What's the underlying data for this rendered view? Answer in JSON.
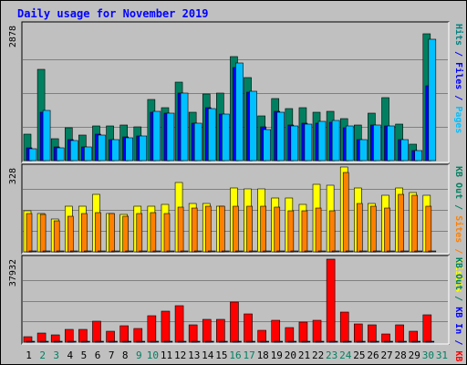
{
  "chart_data": {
    "type": "bar",
    "title": "Daily usage for November 2019",
    "categories": [
      "1",
      "2",
      "3",
      "4",
      "5",
      "6",
      "7",
      "8",
      "9",
      "10",
      "11",
      "12",
      "13",
      "14",
      "15",
      "16",
      "17",
      "18",
      "19",
      "20",
      "21",
      "22",
      "23",
      "24",
      "25",
      "26",
      "27",
      "28",
      "29",
      "30",
      "31"
    ],
    "weekend_days": [
      "2",
      "3",
      "9",
      "10",
      "16",
      "17",
      "23",
      "24",
      "30",
      "31"
    ],
    "panels": [
      {
        "id": "hits",
        "scale_max_label": "2878",
        "ymax": 2878,
        "labels": [
          {
            "text": "Pages",
            "color": "#00c0ff"
          },
          {
            "text": " / ",
            "color": "#0000ff"
          },
          {
            "text": "Files",
            "color": "#0000ff"
          },
          {
            "text": " / ",
            "color": "#0000ff"
          },
          {
            "text": "Hits",
            "color": "#008080"
          }
        ],
        "series": [
          {
            "name": "Hits",
            "color": "#008060",
            "values": [
              560,
              1950,
              470,
              700,
              550,
              740,
              740,
              760,
              720,
              1310,
              1120,
              1670,
              1030,
              1420,
              1430,
              2210,
              1770,
              950,
              1330,
              1110,
              1120,
              1030,
              1050,
              900,
              760,
              1020,
              1340,
              770,
              350,
              2700,
              null
            ]
          },
          {
            "name": "Files",
            "color": "#0000ff",
            "values": [
              280,
              1030,
              290,
              440,
              300,
              570,
              450,
              500,
              520,
              1030,
              1020,
              1430,
              800,
              1120,
              1000,
              1990,
              1460,
              720,
              1050,
              750,
              790,
              790,
              820,
              700,
              450,
              750,
              730,
              450,
              210,
              1600,
              null
            ]
          },
          {
            "name": "Pages",
            "color": "#00c0ff",
            "values": [
              260,
              1060,
              280,
              420,
              300,
              540,
              440,
              490,
              530,
              1050,
              1010,
              1430,
              800,
              1110,
              990,
              2090,
              1480,
              670,
              1040,
              740,
              780,
              830,
              850,
              730,
              440,
              750,
              730,
              450,
              210,
              2580,
              null
            ]
          }
        ]
      },
      {
        "id": "visits",
        "scale_max_label": "328",
        "ymax": 328,
        "labels": [
          {
            "text": "Visits",
            "color": "#ffff00"
          },
          {
            "text": " / ",
            "color": "#ff8000"
          },
          {
            "text": "Sites",
            "color": "#ff8000"
          },
          {
            "text": " / ",
            "color": "#008060"
          },
          {
            "text": "KB Out",
            "color": "#008060"
          }
        ],
        "series": [
          {
            "name": "Visits",
            "color": "#ffff00",
            "values": [
              160,
              150,
              130,
              180,
              180,
              225,
              150,
              145,
              180,
              180,
              185,
              270,
              190,
              190,
              180,
              250,
              245,
              245,
              210,
              210,
              185,
              265,
              260,
              330,
              250,
              190,
              220,
              250,
              230,
              220,
              null
            ]
          },
          {
            "name": "Sites",
            "color": "#ff8000",
            "values": [
              150,
              145,
              120,
              140,
              150,
              155,
              150,
              140,
              150,
              155,
              150,
              175,
              170,
              180,
              180,
              180,
              180,
              180,
              175,
              160,
              160,
              170,
              160,
              310,
              190,
              180,
              170,
              225,
              220,
              180,
              null
            ]
          },
          {
            "name": "KB Out",
            "color": "#008060",
            "values": [
              5,
              5,
              5,
              5,
              5,
              5,
              5,
              5,
              5,
              5,
              5,
              5,
              5,
              5,
              5,
              5,
              5,
              5,
              5,
              5,
              5,
              5,
              5,
              5,
              5,
              5,
              5,
              5,
              5,
              5,
              null
            ]
          }
        ]
      },
      {
        "id": "kbin",
        "scale_max_label": "37932",
        "ymax": 37932,
        "labels": [
          {
            "text": "KB F",
            "color": "#ff0000"
          },
          {
            "text": " / ",
            "color": "#0000ff"
          },
          {
            "text": "KB In",
            "color": "#0000ff"
          },
          {
            "text": " / ",
            "color": "#008060"
          },
          {
            "text": "KB Out",
            "color": "#008060"
          }
        ],
        "series": [
          {
            "name": "KB F",
            "color": "#ff0000",
            "values": [
              2400,
              4000,
              3400,
              5800,
              6000,
              9500,
              5100,
              7600,
              6200,
              12000,
              14200,
              16700,
              7900,
              10600,
              10600,
              18500,
              12800,
              5400,
              9800,
              6700,
              9100,
              10100,
              37900,
              13700,
              8400,
              7900,
              3700,
              7800,
              4900,
              12600,
              null
            ]
          },
          {
            "name": "KB In",
            "color": "#0000ff",
            "values": [
              250,
              250,
              250,
              250,
              250,
              250,
              250,
              250,
              250,
              250,
              250,
              250,
              250,
              250,
              250,
              250,
              250,
              250,
              250,
              250,
              250,
              250,
              250,
              250,
              250,
              250,
              250,
              250,
              250,
              250,
              null
            ]
          }
        ]
      }
    ],
    "colors": {
      "page_bg": "#ffffff",
      "frame_bg": "#c0c0c0",
      "plot_bg": "#c0c0c0",
      "grid": "#808080",
      "title_color": "#0000ff",
      "axis_text": "#000000",
      "weekend_text": "#008060"
    },
    "grid": true,
    "legend": "right-vertical"
  }
}
